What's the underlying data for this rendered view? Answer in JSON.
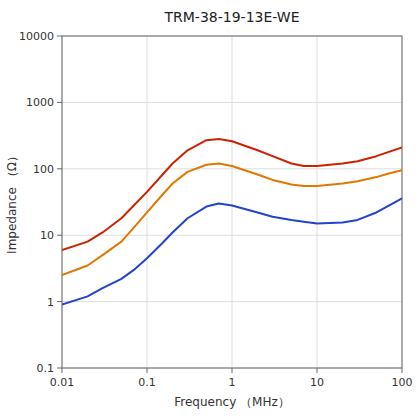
{
  "chart_data": {
    "type": "line",
    "title": "TRM-38-19-13E-WE",
    "xlabel": "Frequency （MHz）",
    "ylabel": "Impedance （Ω）",
    "log": true,
    "grid": true,
    "xlim": [
      0.01,
      100
    ],
    "xticks": [
      0.01,
      0.1,
      1,
      10,
      100
    ],
    "ylim": [
      0.1,
      10000
    ],
    "yticks": [
      0.1,
      1,
      10,
      100,
      1000,
      10000
    ],
    "x": [
      0.01,
      0.02,
      0.03,
      0.05,
      0.07,
      0.1,
      0.15,
      0.2,
      0.3,
      0.5,
      0.7,
      1.0,
      2.0,
      3.0,
      5.0,
      7.0,
      10.0,
      20.0,
      30.0,
      50.0,
      70.0,
      100.0
    ],
    "series": [
      {
        "color": "#cc2200",
        "values": [
          6.0,
          8.0,
          11.0,
          18.0,
          28.0,
          45.0,
          80.0,
          120.0,
          190.0,
          270.0,
          280.0,
          260.0,
          190.0,
          155.0,
          120.0,
          110.0,
          110.0,
          120.0,
          130.0,
          155.0,
          180.0,
          210.0
        ]
      },
      {
        "color": "#e07800",
        "values": [
          2.5,
          3.5,
          5.0,
          8.0,
          13.0,
          22.0,
          40.0,
          60.0,
          90.0,
          115.0,
          120.0,
          110.0,
          82.0,
          68.0,
          58.0,
          55.0,
          55.0,
          60.0,
          65.0,
          75.0,
          85.0,
          95.0
        ]
      },
      {
        "color": "#2244cc",
        "values": [
          0.9,
          1.2,
          1.6,
          2.2,
          3.0,
          4.5,
          7.5,
          11.0,
          18.0,
          27.0,
          30.0,
          28.0,
          22.0,
          19.0,
          17.0,
          16.0,
          15.0,
          15.5,
          17.0,
          22.0,
          28.0,
          36.0
        ]
      }
    ]
  }
}
